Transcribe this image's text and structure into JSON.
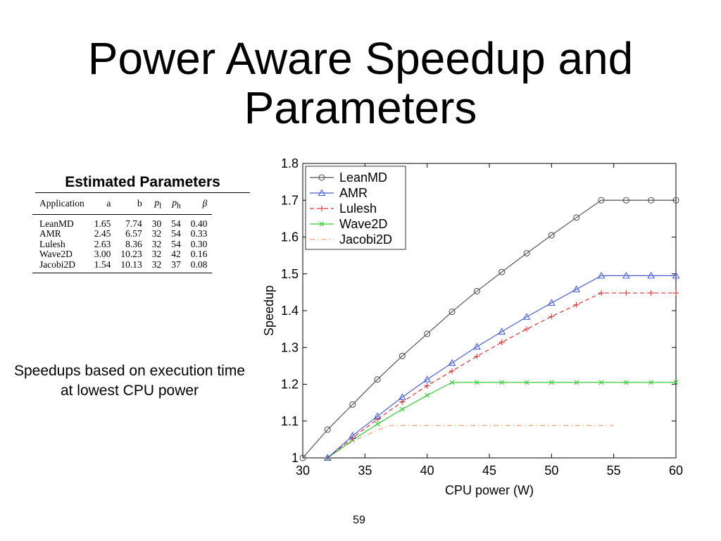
{
  "slide": {
    "title_line1": "Power Aware Speedup and",
    "title_line2": "Parameters",
    "table_title": "Estimated Parameters",
    "caption": "Speedups based on execution time at lowest CPU power",
    "page_number": "59"
  },
  "table": {
    "headers": [
      "Application",
      "a",
      "b",
      "p",
      "p",
      "β"
    ],
    "header_subscripts": [
      "",
      "",
      "",
      "l",
      "h",
      ""
    ],
    "rows": [
      [
        "LeanMD",
        "1.65",
        "7.74",
        "30",
        "54",
        "0.40"
      ],
      [
        "AMR",
        "2.45",
        "6.57",
        "32",
        "54",
        "0.33"
      ],
      [
        "Lulesh",
        "2.63",
        "8.36",
        "32",
        "54",
        "0.30"
      ],
      [
        "Wave2D",
        "3.00",
        "10.23",
        "32",
        "42",
        "0.16"
      ],
      [
        "Jacobi2D",
        "1.54",
        "10.13",
        "32",
        "37",
        "0.08"
      ]
    ]
  },
  "chart_data": {
    "type": "line",
    "xlabel": "CPU power (W)",
    "ylabel": "Speedup",
    "xlim": [
      30,
      60
    ],
    "ylim": [
      1,
      1.8
    ],
    "xticks": [
      30,
      35,
      40,
      45,
      50,
      55,
      60
    ],
    "yticks": [
      "1",
      "1.1",
      "1.2",
      "1.3",
      "1.4",
      "1.5",
      "1.6",
      "1.7",
      "1.8"
    ],
    "legend_position": "top-left",
    "grid": false,
    "series": [
      {
        "name": "LeanMD",
        "color": "#555555",
        "marker": "circle",
        "dash": "solid",
        "x": [
          30,
          32,
          34,
          36,
          38,
          40,
          42,
          44,
          46,
          48,
          50,
          52,
          54,
          56,
          58,
          60
        ],
        "y": [
          1.0,
          1.077,
          1.145,
          1.213,
          1.277,
          1.337,
          1.397,
          1.453,
          1.505,
          1.556,
          1.605,
          1.653,
          1.7,
          1.7,
          1.7,
          1.7
        ]
      },
      {
        "name": "AMR",
        "color": "#4a5fd6",
        "marker": "triangle",
        "dash": "solid",
        "x": [
          32,
          34,
          36,
          38,
          40,
          42,
          44,
          46,
          48,
          50,
          52,
          54,
          56,
          58,
          60
        ],
        "y": [
          1.0,
          1.06,
          1.113,
          1.165,
          1.213,
          1.258,
          1.302,
          1.343,
          1.383,
          1.421,
          1.458,
          1.495,
          1.495,
          1.495,
          1.495
        ]
      },
      {
        "name": "Lulesh",
        "color": "#dd3333",
        "marker": "plus",
        "dash": "dashed",
        "x": [
          32,
          34,
          36,
          38,
          40,
          42,
          44,
          46,
          48,
          50,
          52,
          54,
          56,
          58,
          60
        ],
        "y": [
          1.0,
          1.054,
          1.105,
          1.152,
          1.196,
          1.236,
          1.276,
          1.314,
          1.35,
          1.384,
          1.416,
          1.448,
          1.448,
          1.448,
          1.448
        ]
      },
      {
        "name": "Wave2D",
        "color": "#33cc33",
        "marker": "x",
        "dash": "solid",
        "x": [
          32,
          34,
          36,
          38,
          40,
          42,
          44,
          46,
          48,
          50,
          52,
          54,
          56,
          58,
          60
        ],
        "y": [
          1.0,
          1.048,
          1.092,
          1.132,
          1.17,
          1.205,
          1.205,
          1.205,
          1.205,
          1.205,
          1.205,
          1.205,
          1.205,
          1.205,
          1.205
        ]
      },
      {
        "name": "Jacobi2D",
        "color": "#e8a070",
        "marker": "none",
        "dash": "dashdot",
        "x": [
          32,
          34,
          36,
          37,
          40,
          45,
          50,
          55
        ],
        "y": [
          1.0,
          1.045,
          1.075,
          1.088,
          1.088,
          1.088,
          1.088,
          1.088
        ]
      }
    ]
  }
}
